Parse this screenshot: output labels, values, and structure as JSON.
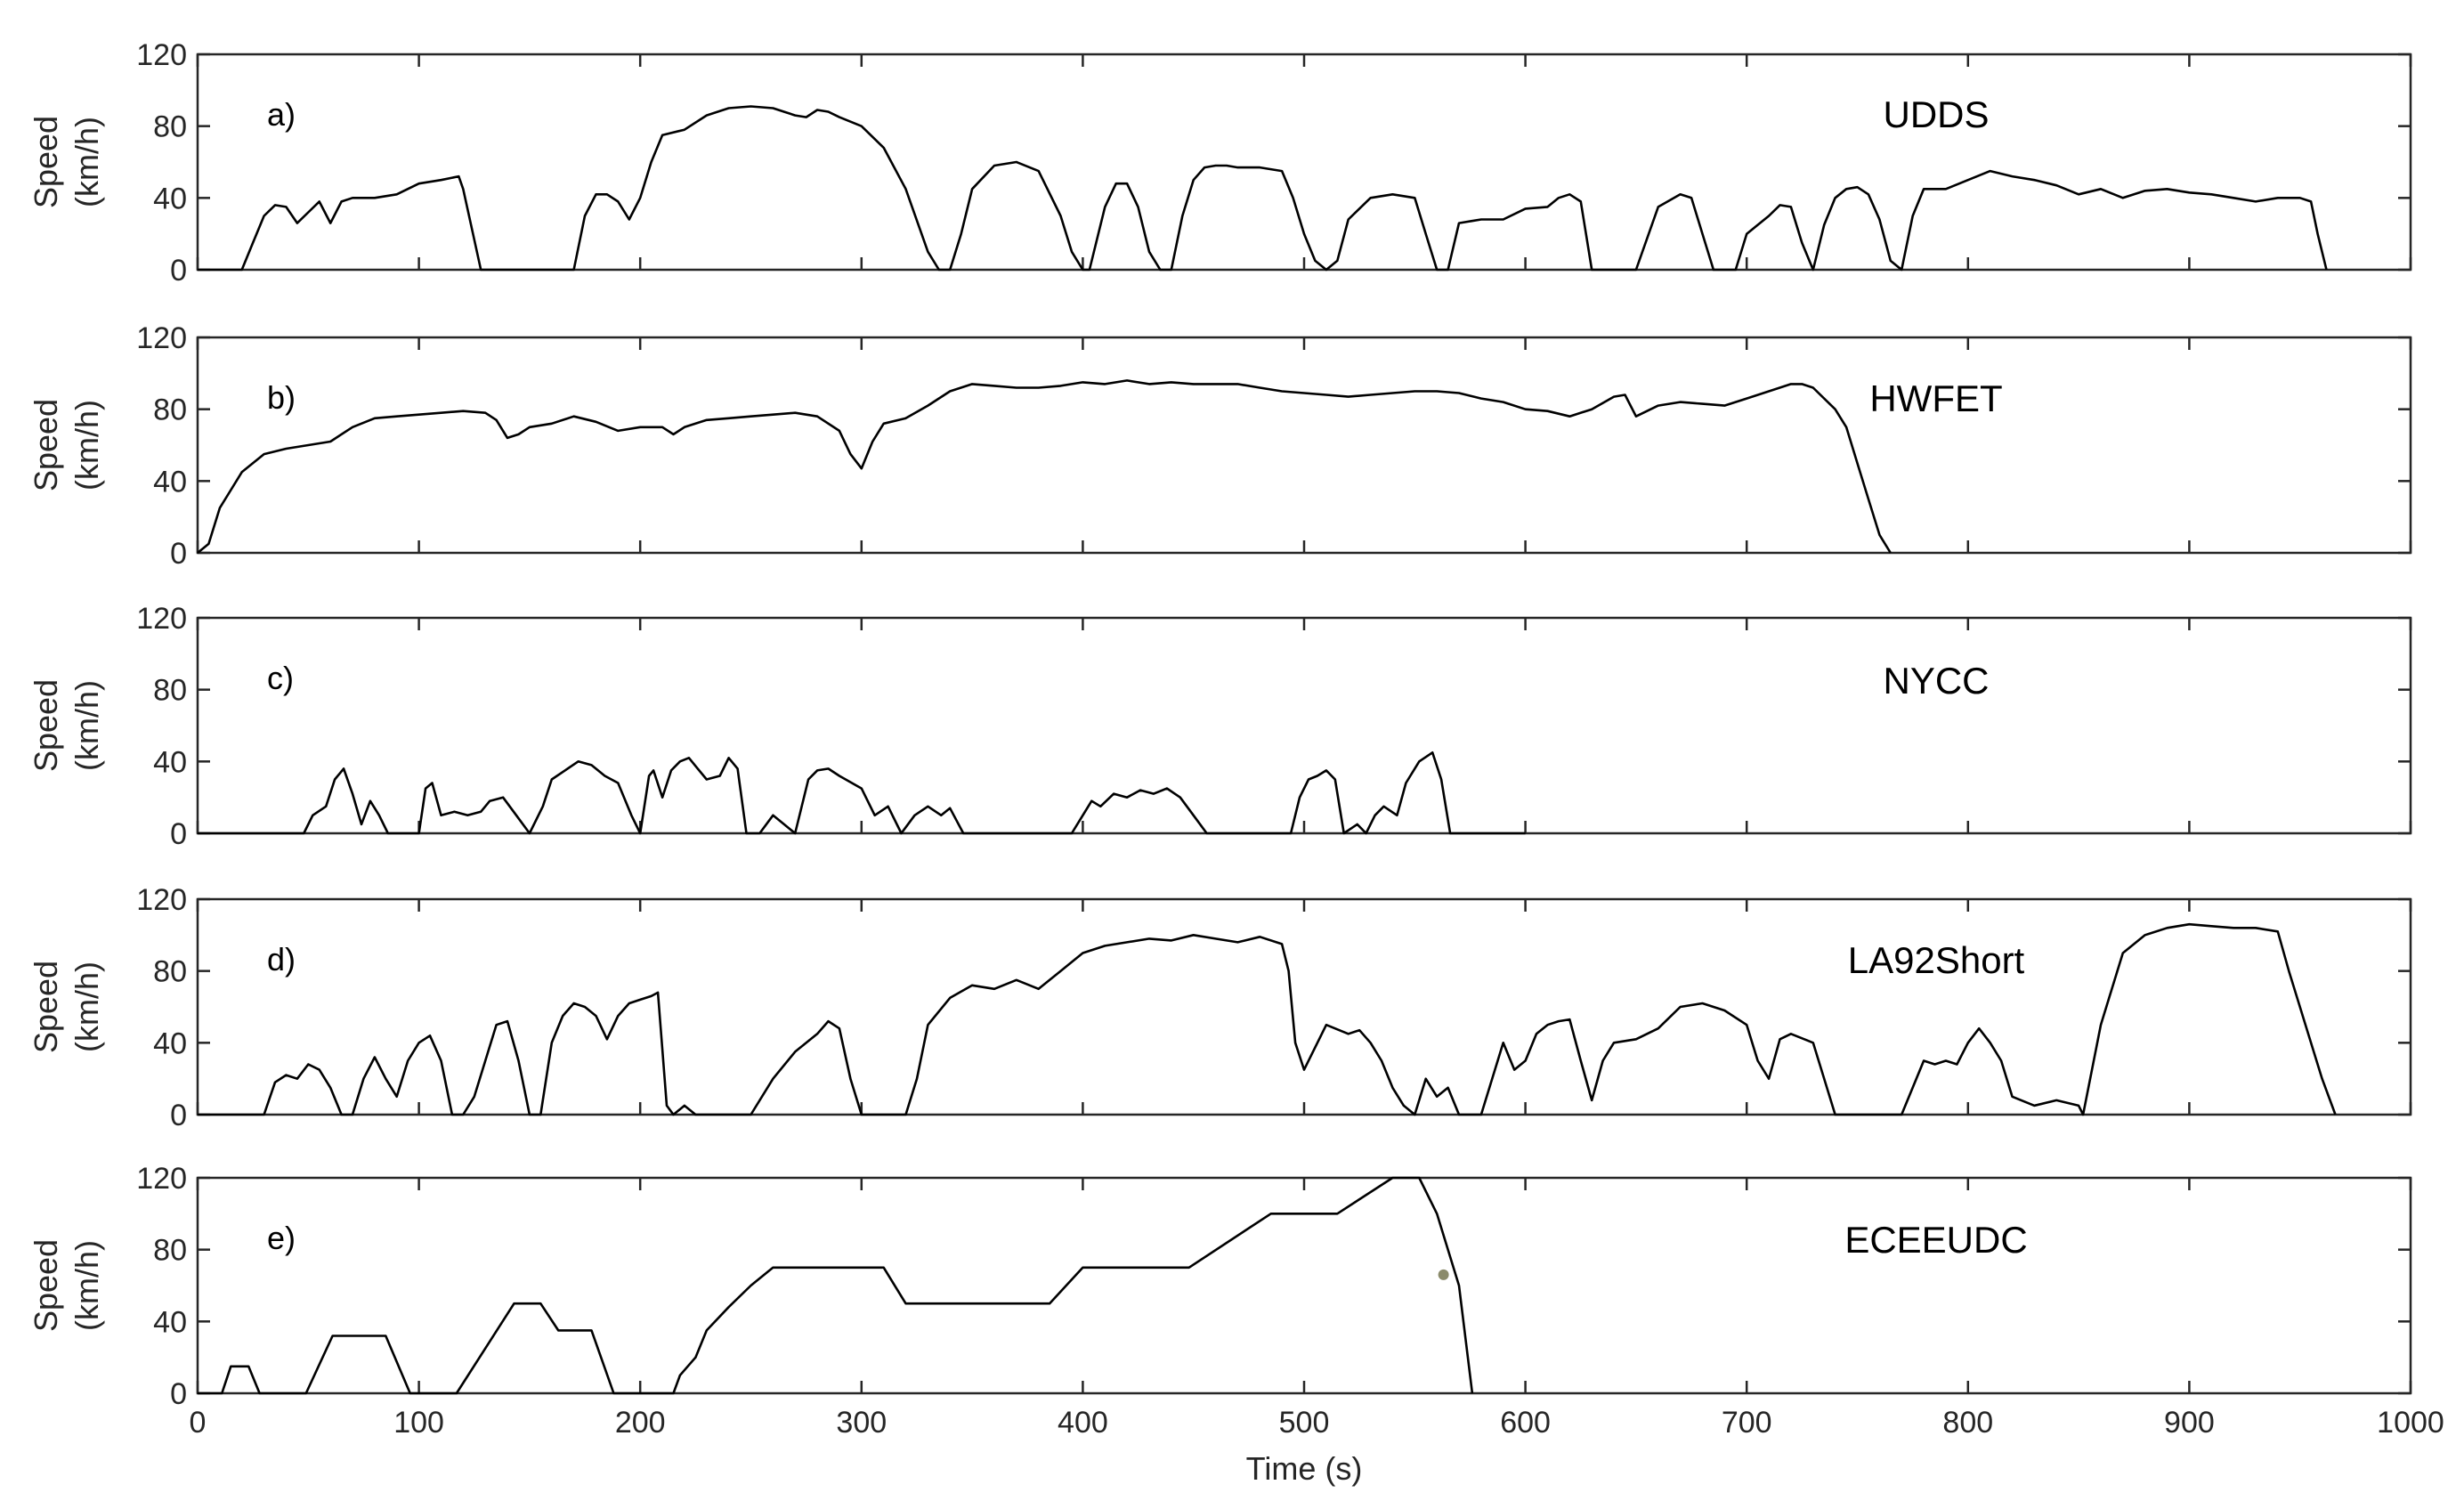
{
  "figure": {
    "x_axis_label": "Time (s)",
    "y_axis_label_line1": "Speed",
    "y_axis_label_line2": "(km/h)"
  },
  "chart_data": [
    {
      "type": "line",
      "panel_label": "a)",
      "name": "UDDS",
      "xlim": [
        0,
        1000
      ],
      "ylim": [
        0,
        120
      ],
      "xticks": [
        0,
        100,
        200,
        300,
        400,
        500,
        600,
        700,
        800,
        900,
        1000
      ],
      "yticks": [
        0,
        40,
        80,
        120
      ],
      "x": [
        0,
        20,
        25,
        30,
        35,
        40,
        45,
        50,
        55,
        60,
        65,
        70,
        75,
        80,
        90,
        100,
        110,
        118,
        120,
        128,
        170,
        175,
        180,
        185,
        190,
        195,
        200,
        205,
        210,
        220,
        230,
        240,
        250,
        260,
        270,
        275,
        280,
        285,
        290,
        300,
        310,
        320,
        330,
        335,
        340,
        345,
        350,
        360,
        370,
        380,
        390,
        395,
        400,
        403,
        410,
        415,
        420,
        425,
        430,
        435,
        440,
        445,
        450,
        455,
        460,
        465,
        470,
        480,
        490,
        495,
        500,
        505,
        510,
        515,
        520,
        530,
        540,
        550,
        555,
        560,
        565,
        570,
        580,
        590,
        600,
        610,
        615,
        620,
        625,
        630,
        640,
        650,
        660,
        670,
        675,
        680,
        685,
        690,
        695,
        700,
        710,
        715,
        720,
        725,
        730,
        735,
        740,
        745,
        750,
        755,
        760,
        765,
        770,
        775,
        780,
        790,
        800,
        810,
        820,
        830,
        840,
        850,
        860,
        870,
        880,
        890,
        900,
        910,
        920,
        930,
        940,
        950,
        955,
        958,
        962
      ],
      "y": [
        0,
        0,
        15,
        30,
        36,
        35,
        26,
        32,
        38,
        26,
        38,
        40,
        40,
        40,
        42,
        48,
        50,
        52,
        45,
        0,
        0,
        30,
        42,
        42,
        38,
        28,
        40,
        60,
        75,
        78,
        86,
        90,
        91,
        90,
        86,
        85,
        89,
        88,
        85,
        80,
        68,
        45,
        10,
        0,
        0,
        20,
        45,
        58,
        60,
        55,
        30,
        10,
        0,
        0,
        35,
        48,
        48,
        35,
        10,
        0,
        0,
        30,
        50,
        57,
        58,
        58,
        57,
        57,
        55,
        40,
        20,
        5,
        0,
        5,
        28,
        40,
        42,
        40,
        20,
        0,
        0,
        26,
        28,
        28,
        34,
        35,
        40,
        42,
        38,
        0,
        0,
        0,
        35,
        42,
        40,
        20,
        0,
        0,
        0,
        20,
        30,
        36,
        35,
        15,
        0,
        25,
        40,
        45,
        46,
        42,
        28,
        5,
        0,
        30,
        45,
        45,
        50,
        55,
        52,
        50,
        47,
        42,
        45,
        40,
        44,
        45,
        43,
        42,
        40,
        38,
        40,
        40,
        38,
        20,
        0
      ],
      "annotations": []
    },
    {
      "type": "line",
      "panel_label": "b)",
      "name": "HWFET",
      "xlim": [
        0,
        1000
      ],
      "ylim": [
        0,
        120
      ],
      "xticks": [
        0,
        100,
        200,
        300,
        400,
        500,
        600,
        700,
        800,
        900,
        1000
      ],
      "yticks": [
        0,
        40,
        80,
        120
      ],
      "x": [
        0,
        5,
        10,
        20,
        30,
        40,
        50,
        60,
        70,
        80,
        90,
        100,
        110,
        120,
        130,
        135,
        140,
        145,
        150,
        160,
        170,
        180,
        190,
        200,
        210,
        215,
        220,
        230,
        240,
        250,
        260,
        270,
        280,
        290,
        295,
        300,
        305,
        310,
        320,
        330,
        340,
        350,
        360,
        370,
        380,
        390,
        400,
        410,
        420,
        430,
        440,
        450,
        460,
        470,
        480,
        490,
        500,
        510,
        520,
        530,
        540,
        550,
        560,
        570,
        580,
        590,
        600,
        610,
        620,
        630,
        640,
        645,
        650,
        660,
        670,
        680,
        690,
        700,
        710,
        720,
        725,
        730,
        740,
        745,
        750,
        755,
        760,
        765
      ],
      "y": [
        0,
        5,
        25,
        45,
        55,
        58,
        60,
        62,
        70,
        75,
        76,
        77,
        78,
        79,
        78,
        74,
        64,
        66,
        70,
        72,
        76,
        73,
        68,
        70,
        70,
        66,
        70,
        74,
        75,
        76,
        77,
        78,
        76,
        68,
        55,
        47,
        62,
        72,
        75,
        82,
        90,
        94,
        93,
        92,
        92,
        93,
        95,
        94,
        96,
        94,
        95,
        94,
        94,
        94,
        92,
        90,
        89,
        88,
        87,
        88,
        89,
        90,
        90,
        89,
        86,
        84,
        80,
        79,
        76,
        80,
        87,
        88,
        76,
        82,
        84,
        83,
        82,
        86,
        90,
        94,
        94,
        92,
        80,
        70,
        50,
        30,
        10,
        0
      ],
      "annotations": []
    },
    {
      "type": "line",
      "panel_label": "c)",
      "name": "NYCC",
      "xlim": [
        0,
        1000
      ],
      "ylim": [
        0,
        120
      ],
      "xticks": [
        0,
        100,
        200,
        300,
        400,
        500,
        600,
        700,
        800,
        900,
        1000
      ],
      "yticks": [
        0,
        40,
        80,
        120
      ],
      "x": [
        0,
        48,
        52,
        58,
        62,
        66,
        70,
        74,
        78,
        82,
        86,
        100,
        103,
        106,
        110,
        116,
        122,
        128,
        132,
        138,
        144,
        150,
        156,
        160,
        166,
        172,
        178,
        184,
        190,
        196,
        200,
        204,
        206,
        210,
        214,
        218,
        222,
        226,
        230,
        236,
        240,
        244,
        248,
        254,
        260,
        265,
        270,
        276,
        280,
        285,
        290,
        300,
        306,
        312,
        318,
        324,
        330,
        336,
        340,
        346,
        350,
        354,
        360,
        395,
        400,
        404,
        408,
        414,
        420,
        426,
        432,
        438,
        444,
        450,
        456,
        462,
        494,
        498,
        502,
        506,
        510,
        514,
        518,
        524,
        528,
        532,
        536,
        542,
        546,
        552,
        558,
        562,
        566,
        600
      ],
      "y": [
        0,
        0,
        10,
        15,
        30,
        36,
        22,
        5,
        18,
        10,
        0,
        0,
        25,
        28,
        10,
        12,
        10,
        12,
        18,
        20,
        10,
        0,
        15,
        30,
        35,
        40,
        38,
        32,
        28,
        10,
        0,
        32,
        35,
        20,
        35,
        40,
        42,
        36,
        30,
        32,
        42,
        36,
        0,
        0,
        10,
        5,
        0,
        30,
        35,
        36,
        32,
        25,
        10,
        15,
        0,
        10,
        15,
        10,
        14,
        0,
        0,
        0,
        0,
        0,
        10,
        18,
        15,
        22,
        20,
        24,
        22,
        25,
        20,
        10,
        0,
        0,
        0,
        20,
        30,
        32,
        35,
        30,
        0,
        5,
        0,
        10,
        15,
        10,
        28,
        40,
        45,
        30,
        0,
        0
      ],
      "annotations": []
    },
    {
      "type": "line",
      "panel_label": "d)",
      "name": "LA92Short",
      "xlim": [
        0,
        1000
      ],
      "ylim": [
        0,
        120
      ],
      "xticks": [
        0,
        100,
        200,
        300,
        400,
        500,
        600,
        700,
        800,
        900,
        1000
      ],
      "yticks": [
        0,
        40,
        80,
        120
      ],
      "x": [
        0,
        30,
        35,
        40,
        45,
        50,
        55,
        60,
        65,
        70,
        75,
        80,
        85,
        90,
        95,
        100,
        105,
        110,
        115,
        120,
        125,
        130,
        135,
        140,
        145,
        150,
        155,
        160,
        165,
        170,
        175,
        180,
        185,
        190,
        195,
        200,
        205,
        208,
        212,
        215,
        220,
        225,
        250,
        260,
        270,
        280,
        285,
        290,
        295,
        300,
        305,
        320,
        325,
        330,
        340,
        350,
        360,
        370,
        380,
        390,
        400,
        410,
        420,
        430,
        440,
        450,
        460,
        470,
        480,
        490,
        493,
        496,
        500,
        510,
        520,
        525,
        530,
        535,
        540,
        545,
        550,
        555,
        560,
        565,
        570,
        580,
        590,
        595,
        600,
        605,
        610,
        615,
        620,
        625,
        630,
        635,
        640,
        650,
        660,
        670,
        680,
        690,
        700,
        705,
        710,
        715,
        720,
        730,
        740,
        745,
        750,
        760,
        770,
        780,
        785,
        790,
        795,
        800,
        805,
        810,
        815,
        820,
        830,
        840,
        850,
        852,
        860,
        870,
        880,
        890,
        900,
        910,
        920,
        930,
        940,
        945,
        950,
        955,
        960,
        966
      ],
      "y": [
        0,
        0,
        18,
        22,
        20,
        28,
        25,
        15,
        0,
        0,
        20,
        32,
        20,
        10,
        30,
        40,
        44,
        30,
        0,
        0,
        10,
        30,
        50,
        52,
        30,
        0,
        0,
        40,
        55,
        62,
        60,
        55,
        42,
        55,
        62,
        64,
        66,
        68,
        5,
        0,
        5,
        0,
        0,
        20,
        35,
        45,
        52,
        48,
        20,
        0,
        0,
        0,
        20,
        50,
        65,
        72,
        70,
        75,
        70,
        80,
        90,
        94,
        96,
        98,
        97,
        100,
        98,
        96,
        99,
        95,
        80,
        40,
        25,
        50,
        45,
        47,
        40,
        30,
        15,
        5,
        0,
        20,
        10,
        15,
        0,
        0,
        40,
        25,
        30,
        45,
        50,
        52,
        53,
        30,
        8,
        30,
        40,
        42,
        48,
        60,
        62,
        58,
        50,
        30,
        20,
        42,
        45,
        40,
        0,
        0,
        0,
        0,
        0,
        30,
        28,
        30,
        28,
        40,
        48,
        40,
        30,
        10,
        5,
        8,
        5,
        0,
        50,
        90,
        100,
        104,
        106,
        105,
        104,
        104,
        102,
        80,
        60,
        40,
        20,
        0
      ],
      "annotations": []
    },
    {
      "type": "line",
      "panel_label": "e)",
      "name": "ECEEUDC",
      "xlim": [
        0,
        1000
      ],
      "ylim": [
        0,
        120
      ],
      "xticks": [
        0,
        100,
        200,
        300,
        400,
        500,
        600,
        700,
        800,
        900,
        1000
      ],
      "yticks": [
        0,
        40,
        80,
        120
      ],
      "x": [
        0,
        11,
        15,
        23,
        28,
        49,
        61,
        85,
        96,
        117,
        143,
        155,
        163,
        178,
        188,
        195,
        215,
        218,
        225,
        230,
        240,
        250,
        260,
        310,
        320,
        385,
        400,
        448,
        485,
        515,
        540,
        552,
        560,
        570,
        576
      ],
      "y": [
        0,
        0,
        15,
        15,
        0,
        0,
        32,
        32,
        0,
        0,
        50,
        50,
        35,
        35,
        0,
        0,
        0,
        10,
        20,
        35,
        48,
        60,
        70,
        70,
        50,
        50,
        70,
        70,
        100,
        100,
        120,
        120,
        100,
        60,
        0
      ],
      "annotations": [
        {
          "x": 563,
          "y": 66,
          "marker": "dot",
          "color": "#8b8b6b"
        }
      ]
    }
  ]
}
